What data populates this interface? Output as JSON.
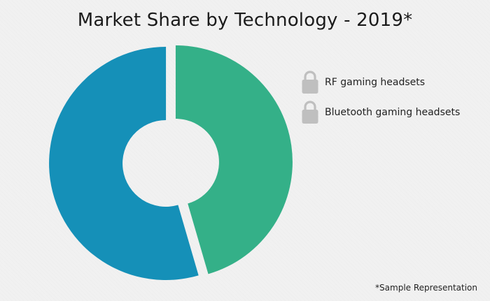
{
  "chart_data": {
    "type": "pie",
    "title": "Market Share by Technology - 2019*",
    "categories": [
      "RF gaming headsets",
      "Bluetooth gaming headsets"
    ],
    "values": [
      45.5,
      54.5
    ],
    "colors": [
      "#34b088",
      "#1590b8"
    ],
    "style": "donut",
    "legend_position": "right",
    "footnote": "*Sample Representation"
  },
  "legend": {
    "items": [
      {
        "label": "RF gaming headsets",
        "icon": "lock-icon"
      },
      {
        "label": "Bluetooth gaming headsets",
        "icon": "lock-icon"
      }
    ],
    "icon_color": "#bfbfbf"
  }
}
